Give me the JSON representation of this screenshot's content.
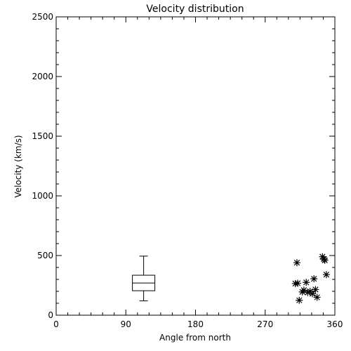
{
  "chart_data": {
    "type": "scatter",
    "title": "Velocity distribution",
    "xlabel": "Angle from north",
    "ylabel": "Velocity (km/s)",
    "xlim": [
      0,
      360
    ],
    "ylim": [
      0,
      2500
    ],
    "xticks": [
      0,
      90,
      180,
      270,
      360
    ],
    "yticks": [
      0,
      500,
      1000,
      1500,
      2000,
      2500
    ],
    "grid": false,
    "boxplot": {
      "x": 113,
      "whisker_low": 120,
      "q1": 205,
      "median": 270,
      "q3": 335,
      "whisker_high": 495
    },
    "points": [
      {
        "x": 311,
        "y": 440
      },
      {
        "x": 309,
        "y": 265
      },
      {
        "x": 312,
        "y": 268
      },
      {
        "x": 314,
        "y": 125
      },
      {
        "x": 318,
        "y": 195
      },
      {
        "x": 320,
        "y": 210
      },
      {
        "x": 323,
        "y": 275
      },
      {
        "x": 325,
        "y": 190
      },
      {
        "x": 328,
        "y": 200
      },
      {
        "x": 331,
        "y": 180
      },
      {
        "x": 333,
        "y": 305
      },
      {
        "x": 335,
        "y": 215
      },
      {
        "x": 337,
        "y": 150
      },
      {
        "x": 344,
        "y": 490
      },
      {
        "x": 346,
        "y": 470
      },
      {
        "x": 347,
        "y": 460
      },
      {
        "x": 349,
        "y": 340
      }
    ]
  }
}
